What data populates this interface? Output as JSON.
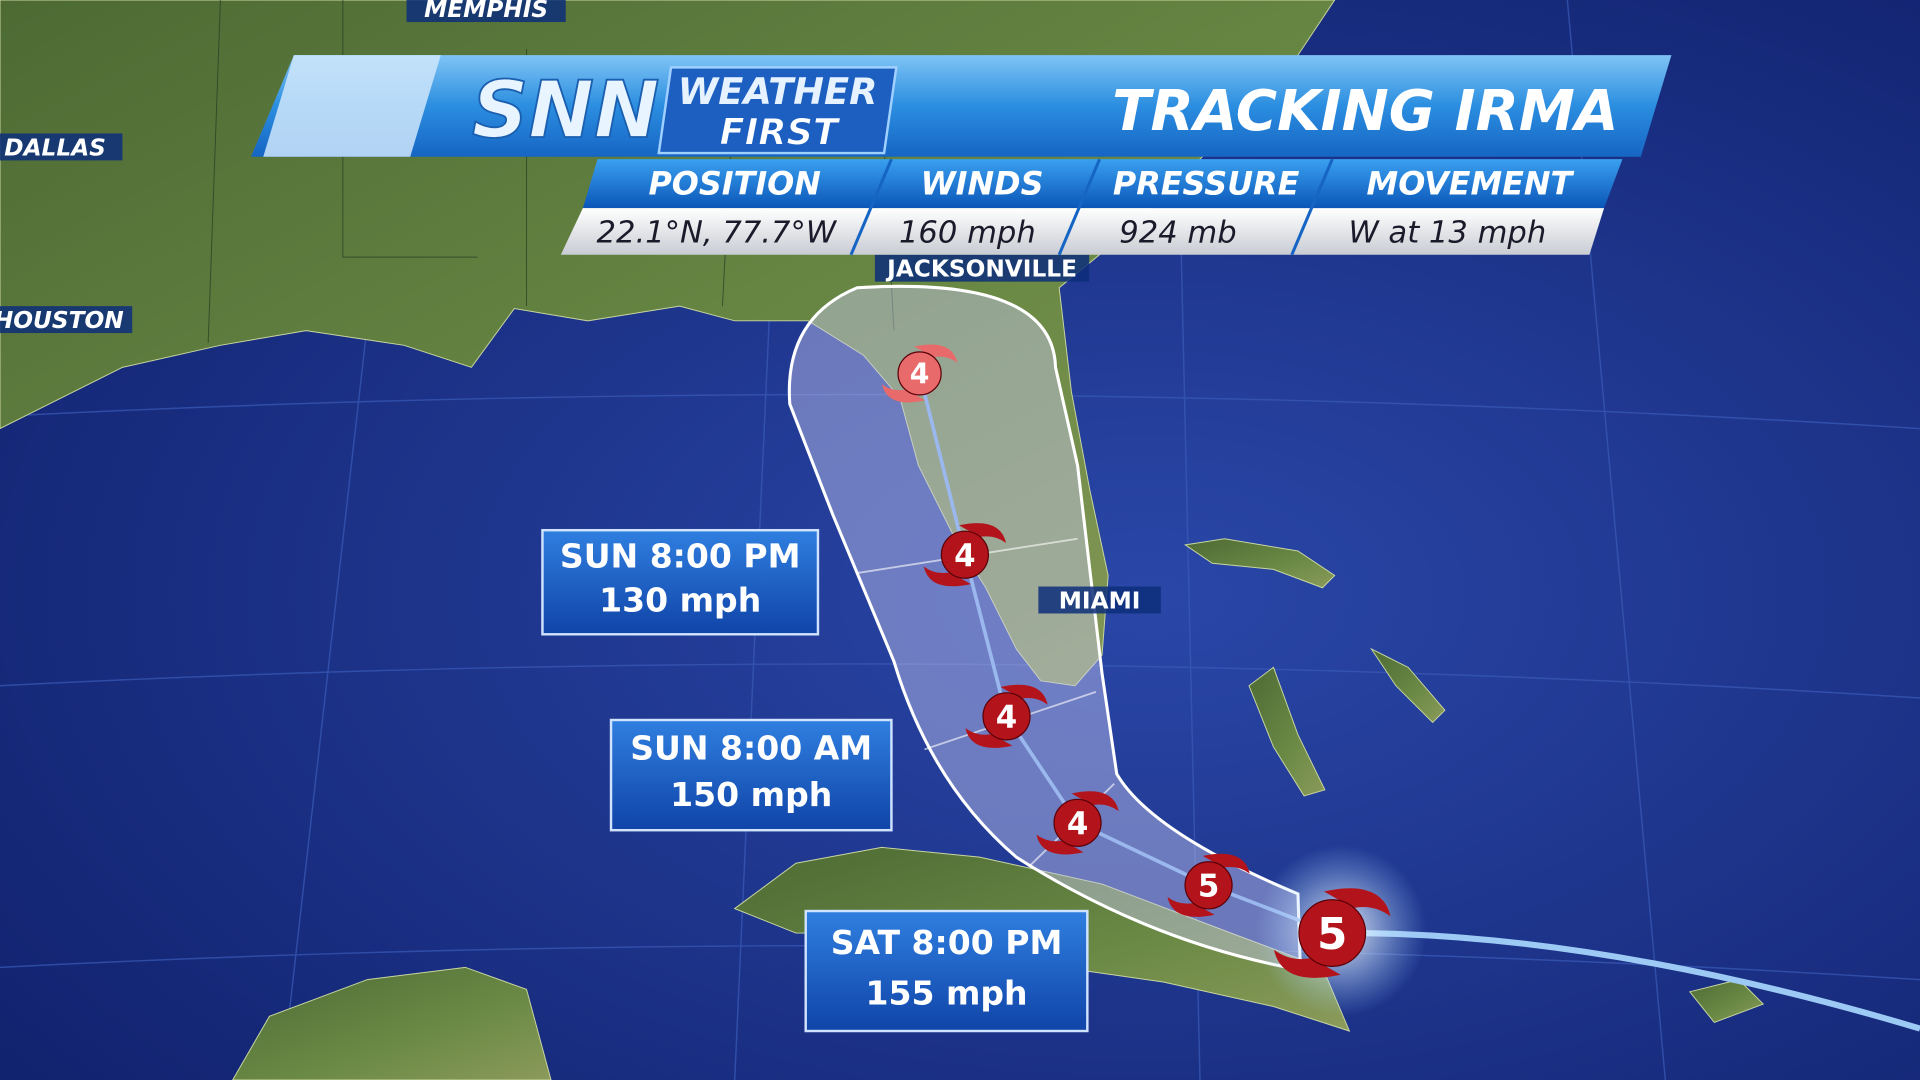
{
  "header": {
    "logo": "SNN",
    "brand_line1": "WEATHER",
    "brand_line2": "FIRST",
    "title": "TRACKING IRMA"
  },
  "stats": {
    "columns": [
      "POSITION",
      "WINDS",
      "PRESSURE",
      "MOVEMENT"
    ],
    "values": [
      "22.1°N, 77.7°W",
      "160 mph",
      "924 mb",
      "W at 13 mph"
    ]
  },
  "cities": [
    "MEMPHIS",
    "DALLAS",
    "HOUSTON",
    "JACKSONVILLE",
    "MIAMI"
  ],
  "forecast_labels": [
    {
      "time": "SUN 8:00 PM",
      "wind": "130 mph"
    },
    {
      "time": "SUN 8:00 AM",
      "wind": "150 mph"
    },
    {
      "time": "SAT 8:00 PM",
      "wind": "155 mph"
    }
  ],
  "storm_points": [
    5,
    5,
    4,
    4,
    4,
    4
  ]
}
